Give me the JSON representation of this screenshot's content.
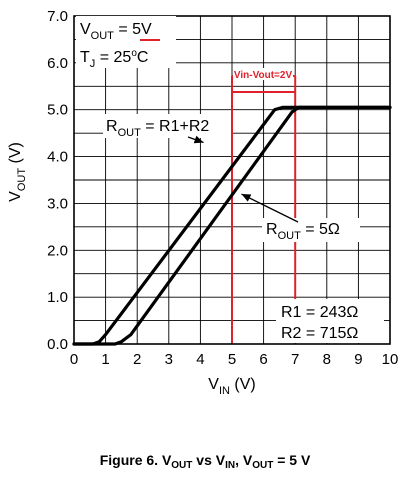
{
  "chart_data": {
    "type": "line",
    "title": "",
    "x": {
      "label": "V",
      "label_sub": "IN",
      "label_tail": " (V)",
      "range": [
        0,
        10
      ],
      "ticks": [
        "0",
        "1",
        "2",
        "3",
        "4",
        "5",
        "6",
        "7",
        "8",
        "9",
        "10"
      ]
    },
    "y": {
      "label": "V",
      "label_sub": "OUT",
      "label_tail": " (V)",
      "range": [
        0.0,
        7.0
      ],
      "ticks": [
        "0.0",
        "1.0",
        "2.0",
        "3.0",
        "4.0",
        "5.0",
        "6.0",
        "7.0"
      ]
    },
    "grid": true,
    "series": [
      {
        "name": "R1+R2",
        "x": [
          0,
          0.6,
          0.8,
          1.0,
          6.35,
          6.6,
          10
        ],
        "y": [
          0,
          0,
          0.05,
          0.2,
          5.0,
          5.05,
          5.05
        ]
      },
      {
        "name": "5Ω",
        "x": [
          0,
          1.3,
          1.5,
          1.8,
          6.9,
          7.1,
          10
        ],
        "y": [
          0,
          0,
          0.05,
          0.2,
          4.95,
          5.05,
          5.05
        ]
      }
    ],
    "markers": {
      "x_lines": [
        5,
        7
      ],
      "label": "Vin-Vout=2V",
      "color": "#e0202a"
    },
    "annotations": [
      {
        "id": "rout_top",
        "main": "R",
        "sub": "OUT",
        "rest": " = R1+R2",
        "points_to": [
          4.1,
          4.3
        ]
      },
      {
        "id": "rout_bottom",
        "main": "R",
        "sub": "OUT",
        "rest": " = 5Ω",
        "points_to": [
          5.3,
          3.2
        ]
      }
    ],
    "conditions": {
      "vout": {
        "main": "V",
        "sub": "OUT",
        "eq": " = ",
        "value": "5V"
      },
      "tj": {
        "main": "T",
        "sub": "J",
        "eq": " = 25",
        "sup": "o",
        "unit": "C"
      }
    },
    "resistors": [
      "R1 = 243Ω",
      "R2 = 715Ω"
    ]
  },
  "caption": {
    "prefix": "Figure 6. V",
    "sub1": "OUT",
    "mid1": " vs V",
    "sub2": "IN",
    "mid2": ", V",
    "sub3": "OUT",
    "tail": " = 5 V"
  }
}
